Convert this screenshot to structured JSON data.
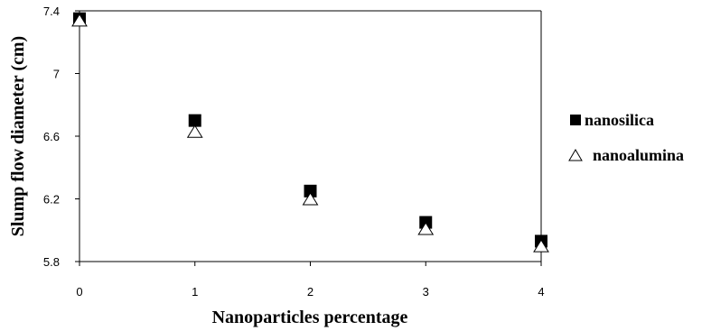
{
  "chart_data": {
    "type": "scatter",
    "xlabel": "Nanoparticles percentage",
    "ylabel": "Slump flow diameter (cm)",
    "xlim": [
      0,
      4
    ],
    "ylim": [
      5.8,
      7.4
    ],
    "x_ticks": [
      "0",
      "1",
      "2",
      "3",
      "4"
    ],
    "y_ticks": [
      "7.4",
      "7",
      "6.6",
      "6.2",
      "5.8"
    ],
    "grid": false,
    "legend_position": "right",
    "series": [
      {
        "name": "nanosilica",
        "marker": "filled-square",
        "color": "#000000",
        "x": [
          0,
          1,
          2,
          3,
          4
        ],
        "y": [
          7.35,
          6.7,
          6.25,
          6.05,
          5.93
        ]
      },
      {
        "name": "nanoalumina",
        "marker": "open-triangle",
        "color": "#000000",
        "x": [
          0,
          1,
          2,
          3,
          4
        ],
        "y": [
          7.34,
          6.63,
          6.2,
          6.01,
          5.9
        ]
      }
    ]
  }
}
